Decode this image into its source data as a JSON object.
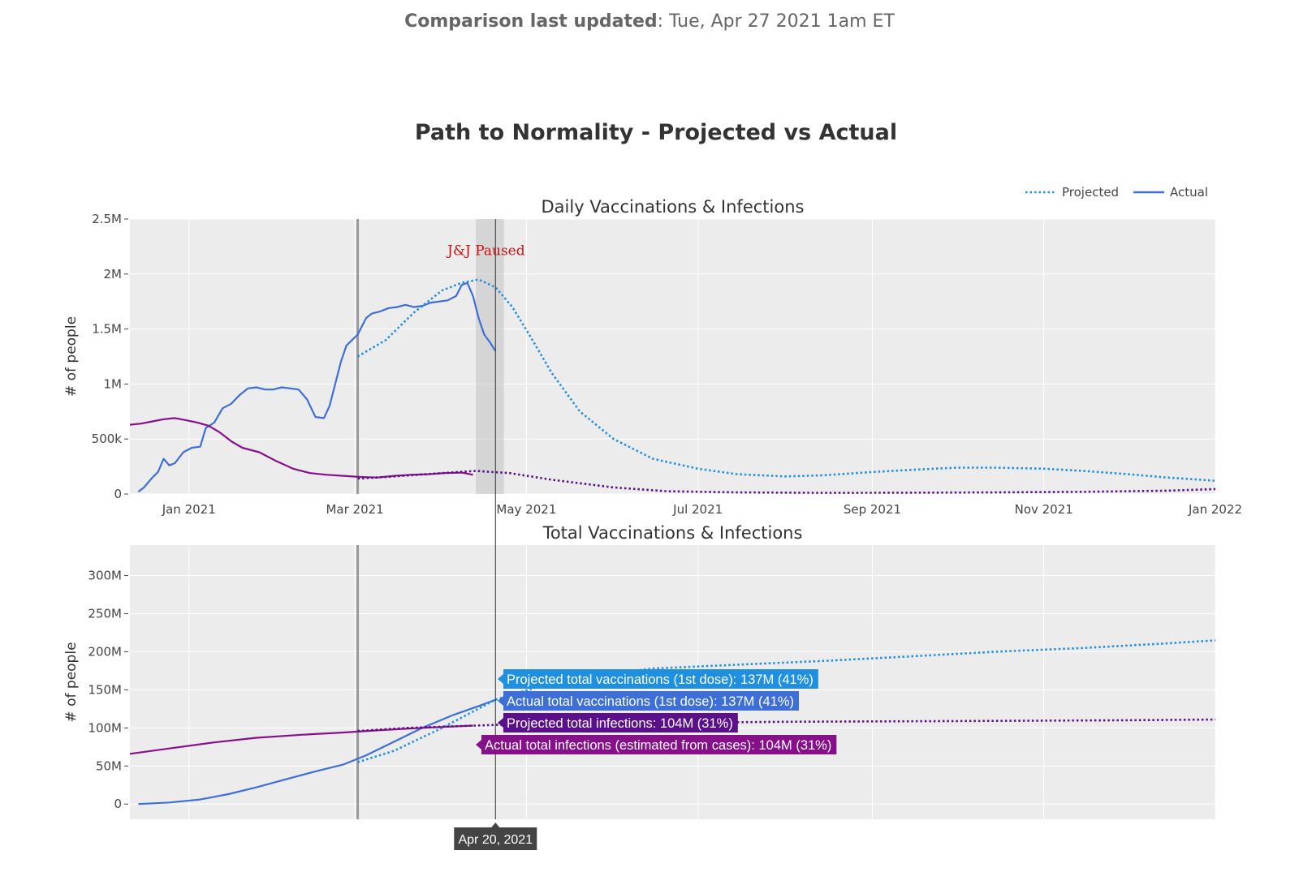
{
  "header": {
    "updated_label": "Comparison last updated",
    "updated_value": ": Tue, Apr 27 2021 1am ET"
  },
  "chart_data": {
    "type": "line",
    "title": "Path to Normality - Projected vs Actual",
    "legend": {
      "placement": "top-right",
      "entries": [
        {
          "name": "Projected",
          "style": "dotted",
          "color": "#1f8fe0"
        },
        {
          "name": "Actual",
          "style": "solid",
          "color": "#3d6fd6"
        }
      ]
    },
    "colors": {
      "vaccinations_projected": "#1f8fe0",
      "vaccinations_actual": "#3d6fd6",
      "infections_projected": "#5b0f8a",
      "infections_actual": "#86108a",
      "plot_bg": "#ececec",
      "grid": "#ffffff"
    },
    "cursor_date": "2021-04-20",
    "cursor_label": "Apr 20, 2021",
    "reference_line_date": "2021-03-02",
    "panels": [
      {
        "title": "Daily Vaccinations & Infections",
        "ylabel": "# of people",
        "xlim": [
          "2020-12-11",
          "2022-01-01"
        ],
        "ylim": [
          0,
          2500000
        ],
        "x_tick_labels": [
          "Jan 2021",
          "Mar 2021",
          "May 2021",
          "Jul 2021",
          "Sep 2021",
          "Nov 2021",
          "Jan 2022"
        ],
        "x_tick_dates": [
          "2021-01-01",
          "2021-03-01",
          "2021-05-01",
          "2021-07-01",
          "2021-09-01",
          "2021-11-01",
          "2022-01-01"
        ],
        "y_ticks": [
          0,
          500000,
          1000000,
          1500000,
          2000000,
          2500000
        ],
        "y_tick_labels": [
          "0",
          "500k",
          "1M",
          "1.5M",
          "2M",
          "2.5M"
        ],
        "annotation": {
          "text": "J&J Paused",
          "date": "2021-04-13",
          "y": 2200000,
          "color": "#cc1111"
        },
        "shaded_band": {
          "start": "2021-04-13",
          "end": "2021-04-23"
        },
        "series": [
          {
            "name": "Actual vaccinations",
            "style": "solid",
            "color": "#3d6fd6",
            "x": [
              "2020-12-14",
              "2020-12-16",
              "2020-12-19",
              "2020-12-21",
              "2020-12-23",
              "2020-12-25",
              "2020-12-27",
              "2020-12-30",
              "2021-01-02",
              "2021-01-05",
              "2021-01-07",
              "2021-01-10",
              "2021-01-13",
              "2021-01-16",
              "2021-01-19",
              "2021-01-22",
              "2021-01-25",
              "2021-01-28",
              "2021-01-31",
              "2021-02-03",
              "2021-02-06",
              "2021-02-09",
              "2021-02-12",
              "2021-02-15",
              "2021-02-18",
              "2021-02-20",
              "2021-02-22",
              "2021-02-24",
              "2021-02-26",
              "2021-02-28",
              "2021-03-02",
              "2021-03-05",
              "2021-03-07",
              "2021-03-10",
              "2021-03-13",
              "2021-03-16",
              "2021-03-19",
              "2021-03-22",
              "2021-03-25",
              "2021-03-28",
              "2021-03-31",
              "2021-04-03",
              "2021-04-06",
              "2021-04-08",
              "2021-04-10",
              "2021-04-12",
              "2021-04-14",
              "2021-04-16",
              "2021-04-18",
              "2021-04-20"
            ],
            "y": [
              20000,
              60000,
              150000,
              200000,
              320000,
              260000,
              280000,
              380000,
              420000,
              430000,
              600000,
              650000,
              780000,
              820000,
              900000,
              960000,
              970000,
              950000,
              950000,
              970000,
              960000,
              950000,
              860000,
              700000,
              690000,
              800000,
              1000000,
              1200000,
              1350000,
              1400000,
              1450000,
              1600000,
              1640000,
              1660000,
              1690000,
              1700000,
              1720000,
              1700000,
              1710000,
              1740000,
              1750000,
              1760000,
              1800000,
              1900000,
              1920000,
              1800000,
              1600000,
              1450000,
              1380000,
              1300000
            ]
          },
          {
            "name": "Projected vaccinations",
            "style": "dotted",
            "color": "#1f8fe0",
            "x": [
              "2021-03-02",
              "2021-03-12",
              "2021-03-22",
              "2021-04-01",
              "2021-04-08",
              "2021-04-14",
              "2021-04-20",
              "2021-04-26",
              "2021-05-02",
              "2021-05-10",
              "2021-05-20",
              "2021-06-01",
              "2021-06-15",
              "2021-07-01",
              "2021-07-15",
              "2021-08-01",
              "2021-08-15",
              "2021-09-01",
              "2021-09-15",
              "2021-10-01",
              "2021-10-15",
              "2021-11-01",
              "2021-11-15",
              "2021-12-01",
              "2021-12-15",
              "2022-01-01"
            ],
            "y": [
              1250000,
              1400000,
              1650000,
              1850000,
              1920000,
              1950000,
              1880000,
              1700000,
              1450000,
              1100000,
              750000,
              500000,
              320000,
              230000,
              180000,
              160000,
              170000,
              200000,
              220000,
              240000,
              240000,
              230000,
              210000,
              180000,
              150000,
              120000
            ]
          },
          {
            "name": "Actual infections",
            "style": "solid",
            "color": "#86108a",
            "x": [
              "2020-12-11",
              "2020-12-15",
              "2020-12-19",
              "2020-12-23",
              "2020-12-27",
              "2020-12-31",
              "2021-01-04",
              "2021-01-08",
              "2021-01-12",
              "2021-01-16",
              "2021-01-20",
              "2021-01-26",
              "2021-02-01",
              "2021-02-07",
              "2021-02-13",
              "2021-02-19",
              "2021-02-25",
              "2021-03-03",
              "2021-03-09",
              "2021-03-15",
              "2021-03-21",
              "2021-03-27",
              "2021-04-02",
              "2021-04-08",
              "2021-04-12"
            ],
            "y": [
              630000,
              640000,
              660000,
              680000,
              690000,
              670000,
              650000,
              620000,
              560000,
              480000,
              420000,
              380000,
              300000,
              230000,
              190000,
              175000,
              165000,
              155000,
              150000,
              165000,
              175000,
              180000,
              190000,
              195000,
              175000
            ]
          },
          {
            "name": "Projected infections",
            "style": "dotted",
            "color": "#5b0f8a",
            "x": [
              "2021-03-02",
              "2021-03-15",
              "2021-04-01",
              "2021-04-13",
              "2021-04-25",
              "2021-05-10",
              "2021-06-01",
              "2021-06-20",
              "2021-07-15",
              "2021-08-15",
              "2021-09-15",
              "2021-10-15",
              "2021-11-15",
              "2021-12-15",
              "2022-01-01"
            ],
            "y": [
              140000,
              160000,
              190000,
              210000,
              190000,
              130000,
              60000,
              25000,
              15000,
              10000,
              12000,
              15000,
              20000,
              30000,
              45000
            ]
          }
        ]
      },
      {
        "title": "Total Vaccinations & Infections",
        "ylabel": "# of people",
        "xlim": [
          "2020-12-11",
          "2022-01-01"
        ],
        "ylim": [
          -20000000,
          340000000
        ],
        "y_ticks": [
          0,
          50000000,
          100000000,
          150000000,
          200000000,
          250000000,
          300000000
        ],
        "y_tick_labels": [
          "0",
          "50M",
          "100M",
          "150M",
          "200M",
          "250M",
          "300M"
        ],
        "series": [
          {
            "name": "Actual total vaccinations",
            "style": "solid",
            "color": "#3d6fd6",
            "x": [
              "2020-12-14",
              "2020-12-25",
              "2021-01-05",
              "2021-01-15",
              "2021-01-25",
              "2021-02-05",
              "2021-02-15",
              "2021-02-25",
              "2021-03-05",
              "2021-03-15",
              "2021-03-25",
              "2021-04-05",
              "2021-04-15",
              "2021-04-20"
            ],
            "y": [
              0,
              2000000,
              6000000,
              13000000,
              22000000,
              33000000,
              43000000,
              52000000,
              64000000,
              82000000,
              100000000,
              117000000,
              130000000,
              137000000
            ]
          },
          {
            "name": "Projected total vaccinations",
            "style": "dotted",
            "color": "#1f8fe0",
            "x": [
              "2021-03-02",
              "2021-03-15",
              "2021-04-01",
              "2021-04-20",
              "2021-05-15",
              "2021-06-15",
              "2021-07-15",
              "2021-08-15",
              "2021-09-15",
              "2021-10-15",
              "2021-11-15",
              "2021-12-15",
              "2022-01-01"
            ],
            "y": [
              55000000,
              70000000,
              100000000,
              137000000,
              165000000,
              178000000,
              183000000,
              188000000,
              194000000,
              200000000,
              205000000,
              211000000,
              215000000
            ]
          },
          {
            "name": "Actual total infections",
            "style": "solid",
            "color": "#86108a",
            "x": [
              "2020-12-11",
              "2020-12-25",
              "2021-01-10",
              "2021-01-25",
              "2021-02-10",
              "2021-02-25",
              "2021-03-10",
              "2021-03-25",
              "2021-04-12"
            ],
            "y": [
              66000000,
              73000000,
              81000000,
              87000000,
              91000000,
              94000000,
              97000000,
              100000000,
              103000000
            ]
          },
          {
            "name": "Projected total infections",
            "style": "dotted",
            "color": "#5b0f8a",
            "x": [
              "2021-03-02",
              "2021-03-20",
              "2021-04-20",
              "2021-06-01",
              "2021-08-01",
              "2021-10-01",
              "2021-12-01",
              "2022-01-01"
            ],
            "y": [
              96000000,
              100000000,
              104000000,
              106000000,
              108000000,
              109000000,
              110000000,
              111000000
            ]
          }
        ]
      }
    ],
    "hover_labels": [
      {
        "text": "Projected total vaccinations (1st dose): 137M (41%)",
        "color": "#1f8fe0"
      },
      {
        "text": "Actual total vaccinations (1st dose): 137M (41%)",
        "color": "#3d6fd6"
      },
      {
        "text": "Projected total infections: 104M (31%)",
        "color": "#5b0f8a"
      },
      {
        "text": "Actual total infections (estimated from cases): 104M (31%)",
        "color": "#86108a"
      }
    ]
  }
}
